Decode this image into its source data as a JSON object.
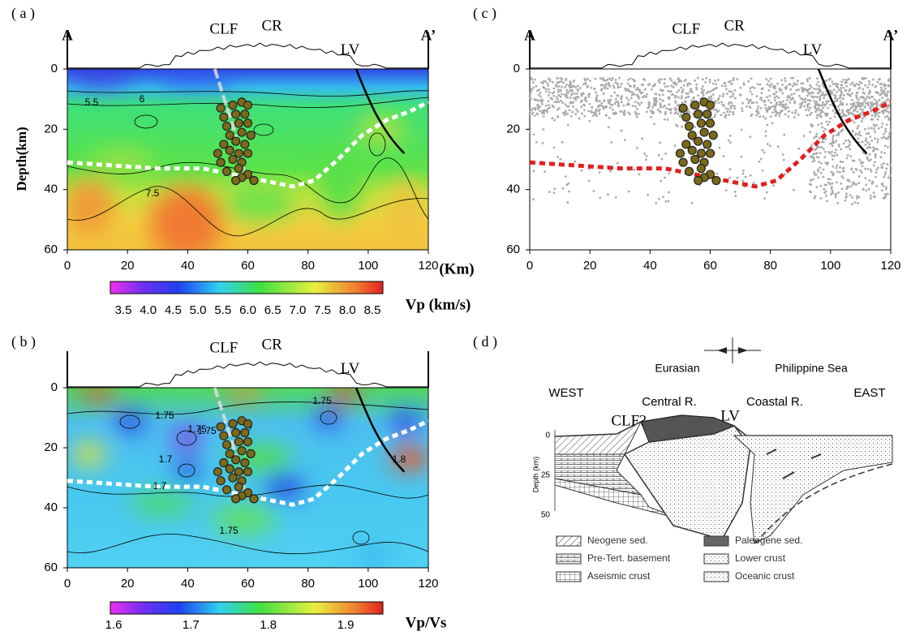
{
  "panel_a": {
    "label": "( a )",
    "start": "A",
    "end": "A’",
    "features": [
      "CLF",
      "CR",
      "LV"
    ],
    "y_title": "Depth(km)",
    "x_unit": "(Km)",
    "x_ticks": [
      0,
      20,
      40,
      60,
      80,
      100,
      120
    ],
    "y_ticks": [
      0,
      20,
      40,
      60
    ],
    "contours": [
      "5.5",
      "6",
      "7.5"
    ],
    "colorbar": {
      "ticks": [
        "3.5",
        "4.0",
        "4.5",
        "5.0",
        "5.5",
        "6.0",
        "6.5",
        "7.0",
        "7.5",
        "8.0",
        "8.5"
      ],
      "title": "Vp (km/s)"
    }
  },
  "panel_b": {
    "label": "( b )",
    "features": [
      "CLF",
      "CR",
      "LV"
    ],
    "x_ticks": [
      0,
      20,
      40,
      60,
      80,
      100,
      120
    ],
    "y_ticks": [
      0,
      20,
      40,
      60
    ],
    "contours": [
      "1.75",
      "1.75",
      "1.75",
      "1.7",
      "1.7",
      "1.8",
      "1.75",
      "1.75"
    ],
    "colorbar": {
      "ticks": [
        "1.6",
        "1.7",
        "1.8",
        "1.9"
      ],
      "title": "Vp/Vs"
    }
  },
  "panel_c": {
    "label": "( c )",
    "start": "A",
    "end": "A’",
    "features": [
      "CLF",
      "CR",
      "LV"
    ],
    "x_ticks": [
      0,
      20,
      40,
      60,
      80,
      100,
      120
    ],
    "y_ticks": [
      0,
      20,
      40,
      60
    ]
  },
  "panel_d": {
    "label": "( d )",
    "plates": [
      "Eurasian",
      "Philippine Sea"
    ],
    "sides": [
      "WEST",
      "EAST"
    ],
    "ranges": [
      "Central R.",
      "Coastal R."
    ],
    "faults": [
      "CLF?",
      "LV"
    ],
    "depth_title": "Depth (km)",
    "depth_ticks": [
      0,
      25,
      50
    ],
    "legend": [
      "Neogene sed.",
      "Pre-Tert. basement",
      "Aseismic crust",
      "Paleogene sed.",
      "Lower crust",
      "Oceanic crust"
    ]
  }
}
